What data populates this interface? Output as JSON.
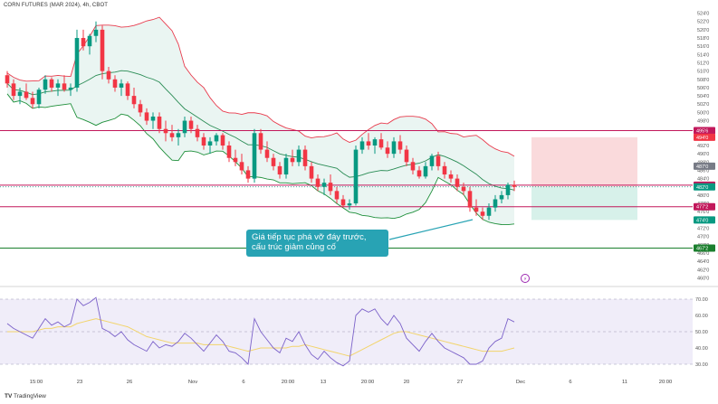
{
  "header": {
    "symbol_title": "CORN FUTURES (MAR 2024), 4h, CBOT"
  },
  "annotation": {
    "line1": "Giá tiếp tục phá vỡ đáy trước,",
    "line2": "cấu trúc giảm củng cố"
  },
  "branding": {
    "logo_text": "TradingView"
  },
  "colors": {
    "bull": "#089981",
    "bear": "#f23645",
    "bb_upper": "#e83b4d",
    "bb_lower": "#1e8f3a",
    "bb_mid": "#2a8c55",
    "bb_fill": "#e8f4f1",
    "level_red": "#c2185b",
    "level_green": "#1b7f2e",
    "rsi_line": "#7b61c9",
    "rsi_ma": "#f2d46b",
    "rsi_band": "#ece8f7",
    "callout": "#28a3b4",
    "sl_zone": "#f9d6d8",
    "tp_zone": "#d3efe8"
  },
  "chart_data": [
    {
      "type": "candlestick",
      "title": "CORN FUTURES (MAR 2024), 4h, CBOT",
      "ylim": [
        4590,
        5250
      ],
      "y_ticks": [
        "524'0",
        "522'0",
        "520'0",
        "518'0",
        "516'0",
        "514'0",
        "512'0",
        "510'0",
        "508'0",
        "506'0",
        "504'0",
        "502'0",
        "500'0",
        "498'0",
        "496'0",
        "494'0",
        "492'0",
        "490'0",
        "488'0",
        "486'0",
        "484'0",
        "482'0",
        "480'0",
        "478'0",
        "476'0",
        "474'0",
        "472'0",
        "470'0",
        "468'0",
        "466'0",
        "464'0",
        "462'0",
        "460'0"
      ],
      "y_tick_values": [
        5240,
        5220,
        5200,
        5180,
        5160,
        5140,
        5120,
        5100,
        5080,
        5060,
        5040,
        5020,
        5000,
        4980,
        4960,
        4940,
        4920,
        4900,
        4880,
        4860,
        4840,
        4820,
        4800,
        4780,
        4760,
        4740,
        4720,
        4700,
        4680,
        4660,
        4640,
        4620,
        4600
      ],
      "x_ticks": [
        "15:00",
        "23",
        "26",
        "Nov",
        "6",
        "20:00",
        "13",
        "20:00",
        "20",
        "27",
        "Dec",
        "6",
        "11",
        "20:00"
      ],
      "horizontal_levels": [
        {
          "value": 4956,
          "label": "495'6",
          "color": "#c2185b"
        },
        {
          "value": 4824,
          "label": "482'4",
          "color": "#c2185b"
        },
        {
          "value": 4772,
          "label": "477'2",
          "color": "#c2185b"
        },
        {
          "value": 4672,
          "label": "467'2",
          "color": "#1b7f2e"
        }
      ],
      "price_labels": [
        {
          "value": 4940,
          "label": "494'0",
          "color": "#f23645"
        },
        {
          "value": 4870,
          "label": "487'0",
          "color": "#787b86"
        },
        {
          "value": 4820,
          "label": "482'0",
          "color": "#089981"
        },
        {
          "value": 4740,
          "label": "474'0",
          "color": "#089981"
        }
      ],
      "position_tool": {
        "entry": 4820,
        "stop": 4940,
        "target": 4740
      },
      "ohlc": [
        [
          5090,
          5100,
          5060,
          5070
        ],
        [
          5070,
          5080,
          5030,
          5040
        ],
        [
          5040,
          5060,
          5020,
          5050
        ],
        [
          5050,
          5070,
          5030,
          5035
        ],
        [
          5035,
          5050,
          5010,
          5020
        ],
        [
          5020,
          5060,
          5010,
          5055
        ],
        [
          5055,
          5090,
          5045,
          5080
        ],
        [
          5080,
          5085,
          5050,
          5060
        ],
        [
          5060,
          5080,
          5040,
          5070
        ],
        [
          5070,
          5090,
          5050,
          5055
        ],
        [
          5055,
          5070,
          5040,
          5060
        ],
        [
          5060,
          5200,
          5050,
          5180
        ],
        [
          5180,
          5200,
          5150,
          5160
        ],
        [
          5160,
          5190,
          5140,
          5185
        ],
        [
          5185,
          5220,
          5170,
          5200
        ],
        [
          5200,
          5210,
          5080,
          5100
        ],
        [
          5100,
          5110,
          5070,
          5080
        ],
        [
          5080,
          5090,
          5050,
          5060
        ],
        [
          5060,
          5080,
          5040,
          5070
        ],
        [
          5070,
          5075,
          5030,
          5040
        ],
        [
          5040,
          5060,
          5010,
          5020
        ],
        [
          5020,
          5030,
          4990,
          5000
        ],
        [
          5000,
          5010,
          4970,
          4980
        ],
        [
          4980,
          5000,
          4960,
          4990
        ],
        [
          4990,
          5000,
          4950,
          4960
        ],
        [
          4960,
          4980,
          4930,
          4950
        ],
        [
          4950,
          4970,
          4930,
          4940
        ],
        [
          4940,
          4960,
          4920,
          4950
        ],
        [
          4950,
          4990,
          4940,
          4980
        ],
        [
          4980,
          4990,
          4950,
          4960
        ],
        [
          4960,
          4970,
          4930,
          4940
        ],
        [
          4940,
          4950,
          4910,
          4920
        ],
        [
          4920,
          4940,
          4900,
          4930
        ],
        [
          4930,
          4950,
          4920,
          4945
        ],
        [
          4945,
          4950,
          4910,
          4920
        ],
        [
          4920,
          4930,
          4880,
          4890
        ],
        [
          4890,
          4910,
          4870,
          4880
        ],
        [
          4880,
          4900,
          4850,
          4860
        ],
        [
          4860,
          4870,
          4830,
          4840
        ],
        [
          4840,
          4960,
          4830,
          4950
        ],
        [
          4950,
          4960,
          4900,
          4910
        ],
        [
          4910,
          4930,
          4880,
          4890
        ],
        [
          4890,
          4900,
          4860,
          4870
        ],
        [
          4870,
          4880,
          4840,
          4850
        ],
        [
          4850,
          4900,
          4840,
          4890
        ],
        [
          4890,
          4910,
          4870,
          4880
        ],
        [
          4880,
          4920,
          4870,
          4910
        ],
        [
          4910,
          4920,
          4860,
          4870
        ],
        [
          4870,
          4880,
          4830,
          4840
        ],
        [
          4840,
          4850,
          4810,
          4820
        ],
        [
          4820,
          4840,
          4800,
          4830
        ],
        [
          4830,
          4850,
          4800,
          4810
        ],
        [
          4810,
          4820,
          4780,
          4790
        ],
        [
          4790,
          4800,
          4770,
          4775
        ],
        [
          4775,
          4790,
          4765,
          4780
        ],
        [
          4780,
          4920,
          4775,
          4910
        ],
        [
          4910,
          4940,
          4900,
          4930
        ],
        [
          4930,
          4950,
          4910,
          4920
        ],
        [
          4920,
          4940,
          4900,
          4935
        ],
        [
          4935,
          4950,
          4910,
          4915
        ],
        [
          4915,
          4930,
          4890,
          4900
        ],
        [
          4900,
          4940,
          4890,
          4930
        ],
        [
          4930,
          4945,
          4900,
          4910
        ],
        [
          4910,
          4920,
          4870,
          4880
        ],
        [
          4880,
          4890,
          4850,
          4860
        ],
        [
          4860,
          4870,
          4840,
          4845
        ],
        [
          4845,
          4880,
          4840,
          4870
        ],
        [
          4870,
          4900,
          4860,
          4895
        ],
        [
          4895,
          4905,
          4860,
          4870
        ],
        [
          4870,
          4880,
          4840,
          4850
        ],
        [
          4850,
          4860,
          4830,
          4840
        ],
        [
          4840,
          4850,
          4810,
          4820
        ],
        [
          4820,
          4830,
          4800,
          4810
        ],
        [
          4810,
          4820,
          4760,
          4770
        ],
        [
          4770,
          4790,
          4750,
          4760
        ],
        [
          4760,
          4770,
          4740,
          4750
        ],
        [
          4750,
          4780,
          4740,
          4770
        ],
        [
          4770,
          4800,
          4760,
          4790
        ],
        [
          4790,
          4810,
          4780,
          4800
        ],
        [
          4800,
          4830,
          4790,
          4825
        ],
        [
          4825,
          4835,
          4810,
          4820
        ]
      ]
    },
    {
      "type": "line",
      "title": "RSI",
      "ylim": [
        25,
        75
      ],
      "y_ticks": [
        "70.00",
        "60.00",
        "50.00",
        "40.00",
        "30.00"
      ],
      "y_tick_values": [
        70,
        60,
        50,
        40,
        30
      ],
      "band": [
        30,
        70
      ],
      "series": [
        {
          "values": [
            55,
            52,
            50,
            48,
            46,
            52,
            58,
            54,
            56,
            53,
            55,
            70,
            66,
            68,
            71,
            52,
            50,
            47,
            50,
            45,
            42,
            40,
            38,
            44,
            40,
            42,
            41,
            44,
            49,
            46,
            42,
            38,
            43,
            48,
            44,
            38,
            37,
            34,
            30,
            58,
            50,
            45,
            40,
            37,
            46,
            44,
            50,
            42,
            36,
            33,
            38,
            34,
            31,
            29,
            32,
            60,
            64,
            62,
            64,
            58,
            54,
            60,
            55,
            46,
            42,
            38,
            44,
            49,
            44,
            40,
            38,
            36,
            34,
            30,
            30,
            32,
            40,
            44,
            46,
            58,
            56
          ]
        },
        {
          "values": [
            50,
            50,
            50,
            50,
            50,
            51,
            52,
            52,
            53,
            53,
            53,
            55,
            56,
            57,
            58,
            57,
            56,
            55,
            54,
            53,
            51,
            49,
            47,
            46,
            45,
            44,
            43,
            43,
            43,
            43,
            43,
            42,
            42,
            42,
            42,
            41,
            40,
            39,
            38,
            39,
            40,
            40,
            40,
            40,
            40,
            41,
            41,
            42,
            41,
            40,
            39,
            38,
            37,
            36,
            35,
            37,
            39,
            41,
            43,
            45,
            47,
            49,
            50,
            50,
            49,
            48,
            47,
            46,
            45,
            44,
            43,
            42,
            41,
            40,
            39,
            38,
            38,
            38,
            38,
            39,
            40
          ]
        }
      ]
    }
  ]
}
